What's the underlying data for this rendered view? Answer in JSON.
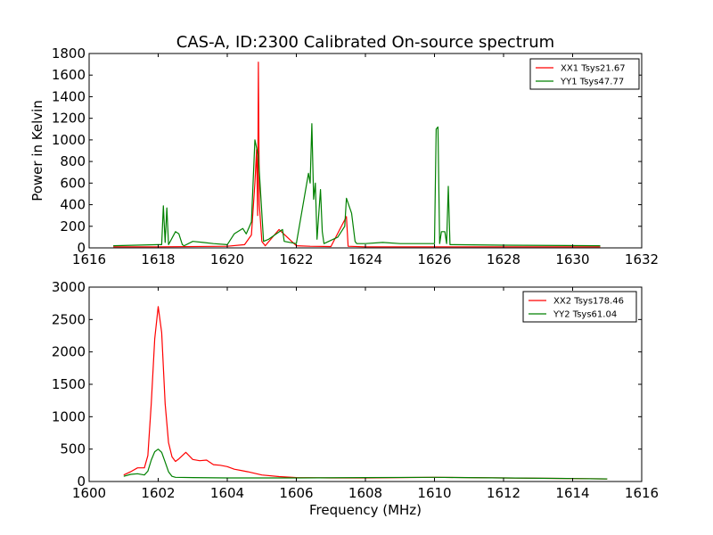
{
  "chart_data": [
    {
      "type": "line",
      "title": "CAS-A, ID:2300 Calibrated On-source spectrum",
      "xlabel": "",
      "ylabel": "Power in Kelvin",
      "xlim": [
        1616,
        1632
      ],
      "ylim": [
        0,
        1800
      ],
      "xticks": [
        1616,
        1618,
        1620,
        1622,
        1624,
        1626,
        1628,
        1630,
        1632
      ],
      "yticks": [
        0,
        200,
        400,
        600,
        800,
        1000,
        1200,
        1400,
        1600,
        1800
      ],
      "grid": false,
      "legend_position": "top-right",
      "series": [
        {
          "name": "XX1 Tsys21.67",
          "color": "#ff0000",
          "x": [
            1616.7,
            1618.0,
            1620.0,
            1620.5,
            1620.7,
            1620.8,
            1620.85,
            1620.88,
            1620.9,
            1620.93,
            1621.0,
            1621.1,
            1621.5,
            1622.0,
            1622.4,
            1623.0,
            1623.45,
            1623.5,
            1624.0,
            1626.0,
            1628.0,
            1630.8
          ],
          "y": [
            10,
            10,
            15,
            30,
            120,
            600,
            910,
            300,
            1720,
            400,
            60,
            20,
            170,
            20,
            15,
            12,
            290,
            15,
            10,
            10,
            10,
            10
          ]
        },
        {
          "name": "YY1 Tsys47.77",
          "color": "#008000",
          "x": [
            1616.7,
            1618.0,
            1618.1,
            1618.15,
            1618.2,
            1618.25,
            1618.3,
            1618.5,
            1618.6,
            1618.7,
            1618.75,
            1619.0,
            1619.3,
            1619.6,
            1620.0,
            1620.2,
            1620.35,
            1620.45,
            1620.55,
            1620.7,
            1620.8,
            1620.9,
            1621.0,
            1621.05,
            1621.2,
            1621.6,
            1621.65,
            1622.0,
            1622.35,
            1622.4,
            1622.45,
            1622.5,
            1622.55,
            1622.6,
            1622.7,
            1622.75,
            1622.8,
            1623.2,
            1623.4,
            1623.45,
            1623.6,
            1623.7,
            1623.75,
            1624.0,
            1624.5,
            1625.0,
            1626.0,
            1626.05,
            1626.1,
            1626.15,
            1626.2,
            1626.3,
            1626.35,
            1626.4,
            1626.45,
            1626.5,
            1628.0,
            1630.8
          ],
          "y": [
            20,
            30,
            30,
            390,
            50,
            370,
            30,
            150,
            130,
            30,
            20,
            60,
            50,
            40,
            30,
            130,
            160,
            180,
            130,
            240,
            1000,
            850,
            320,
            60,
            80,
            170,
            60,
            40,
            690,
            600,
            1150,
            450,
            600,
            80,
            540,
            150,
            40,
            100,
            200,
            460,
            320,
            60,
            40,
            40,
            50,
            40,
            40,
            1100,
            1120,
            40,
            150,
            150,
            40,
            570,
            30,
            30,
            25,
            20
          ]
        }
      ]
    },
    {
      "type": "line",
      "title": "",
      "xlabel": "Frequency (MHz)",
      "ylabel": "",
      "xlim": [
        1600,
        1616
      ],
      "ylim": [
        0,
        3000
      ],
      "xticks": [
        1600,
        1602,
        1604,
        1606,
        1608,
        1610,
        1612,
        1614,
        1616
      ],
      "yticks": [
        0,
        500,
        1000,
        1500,
        2000,
        2500,
        3000
      ],
      "grid": false,
      "legend_position": "top-right",
      "series": [
        {
          "name": "XX2 Tsys178.46",
          "color": "#ff0000",
          "x": [
            1601.0,
            1601.2,
            1601.4,
            1601.6,
            1601.7,
            1601.8,
            1601.9,
            1602.0,
            1602.1,
            1602.2,
            1602.3,
            1602.4,
            1602.5,
            1602.6,
            1602.8,
            1603.0,
            1603.2,
            1603.4,
            1603.6,
            1603.8,
            1604.0,
            1604.2,
            1604.4,
            1604.6,
            1605.0,
            1605.5,
            1606.0,
            1607.0,
            1608.0,
            1609.0,
            1610.0,
            1611.0,
            1612.0,
            1613.0,
            1614.0,
            1615.0
          ],
          "y": [
            100,
            150,
            210,
            210,
            400,
            1200,
            2200,
            2700,
            2300,
            1200,
            600,
            380,
            310,
            350,
            450,
            340,
            320,
            330,
            260,
            250,
            230,
            190,
            170,
            150,
            100,
            75,
            60,
            55,
            55,
            60,
            65,
            60,
            55,
            50,
            45,
            40
          ]
        },
        {
          "name": "YY2 Tsys61.04",
          "color": "#008000",
          "x": [
            1601.0,
            1601.2,
            1601.4,
            1601.6,
            1601.7,
            1601.8,
            1601.9,
            1602.0,
            1602.1,
            1602.2,
            1602.3,
            1602.4,
            1602.5,
            1603.0,
            1604.0,
            1605.0,
            1606.0,
            1608.0,
            1610.0,
            1612.0,
            1614.0,
            1615.0
          ],
          "y": [
            80,
            110,
            120,
            100,
            160,
            330,
            460,
            500,
            450,
            300,
            150,
            80,
            65,
            60,
            55,
            55,
            55,
            60,
            65,
            55,
            45,
            40
          ]
        }
      ]
    }
  ]
}
